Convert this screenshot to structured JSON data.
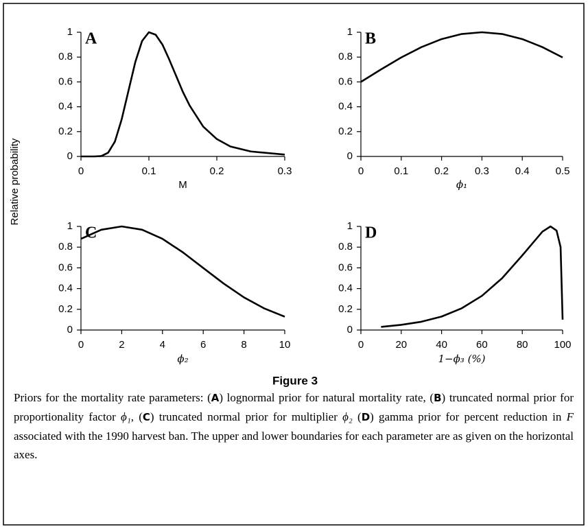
{
  "figure_label": "Figure 3",
  "y_label": "Relative probability",
  "caption": [
    "Priors for the mortality rate parameters: (",
    "A",
    ") lognormal prior for natural mortality rate, (",
    "B",
    ") truncated normal prior for proportionality factor ",
    "ϕ₁",
    ", (",
    "C",
    ") truncated normal prior for multiplier ",
    "ϕ₂",
    " (",
    "D",
    ") gamma prior for percent reduction in ",
    "F",
    " associated with the 1990 harvest ban. The upper and lower boundaries for each parameter are as given on the horizontal axes."
  ],
  "chart_data": [
    {
      "type": "line",
      "panel": "A",
      "x_label": "M",
      "color": "#000000",
      "x": [
        0,
        0.02,
        0.03,
        0.04,
        0.05,
        0.06,
        0.07,
        0.08,
        0.09,
        0.1,
        0.11,
        0.12,
        0.13,
        0.14,
        0.15,
        0.16,
        0.18,
        0.2,
        0.22,
        0.25,
        0.3
      ],
      "values": [
        0,
        0,
        0.003,
        0.03,
        0.12,
        0.3,
        0.53,
        0.76,
        0.93,
        1,
        0.98,
        0.9,
        0.78,
        0.65,
        0.52,
        0.41,
        0.24,
        0.14,
        0.08,
        0.04,
        0.015
      ],
      "xlim": [
        0,
        0.3
      ],
      "xticks": [
        0,
        0.1,
        0.2,
        0.3
      ],
      "ylim": [
        0,
        1
      ],
      "yticks": [
        0,
        0.2,
        0.4,
        0.6,
        0.8,
        1
      ]
    },
    {
      "type": "line",
      "panel": "B",
      "x_label": "ϕ₁",
      "color": "#000000",
      "x": [
        0,
        0.05,
        0.1,
        0.15,
        0.2,
        0.25,
        0.3,
        0.35,
        0.4,
        0.45,
        0.5
      ],
      "values": [
        0.6,
        0.701,
        0.797,
        0.88,
        0.945,
        0.986,
        1,
        0.986,
        0.945,
        0.88,
        0.797
      ],
      "xlim": [
        0,
        0.5
      ],
      "xticks": [
        0,
        0.1,
        0.2,
        0.3,
        0.4,
        0.5
      ],
      "ylim": [
        0,
        1
      ],
      "yticks": [
        0,
        0.2,
        0.4,
        0.6,
        0.8,
        1
      ]
    },
    {
      "type": "line",
      "panel": "C",
      "x_label": "ϕ₂",
      "color": "#000000",
      "x": [
        0,
        1,
        2,
        3,
        4,
        5,
        6,
        7,
        8,
        9,
        10
      ],
      "values": [
        0.88,
        0.968,
        1,
        0.968,
        0.88,
        0.75,
        0.599,
        0.449,
        0.315,
        0.208,
        0.129
      ],
      "xlim": [
        0,
        10
      ],
      "xticks": [
        0,
        2,
        4,
        6,
        8,
        10
      ],
      "ylim": [
        0,
        1
      ],
      "yticks": [
        0,
        0.2,
        0.4,
        0.6,
        0.8,
        1
      ]
    },
    {
      "type": "line",
      "panel": "D",
      "x_label": "1−ϕ₃ (%)",
      "color": "#000000",
      "x": [
        10,
        20,
        30,
        40,
        50,
        60,
        70,
        80,
        90,
        94,
        97,
        99,
        100
      ],
      "values": [
        0.03,
        0.05,
        0.08,
        0.13,
        0.21,
        0.33,
        0.5,
        0.72,
        0.95,
        1,
        0.96,
        0.8,
        0.1
      ],
      "xlim": [
        0,
        100
      ],
      "xticks": [
        0,
        20,
        40,
        60,
        80,
        100
      ],
      "ylim": [
        0,
        1
      ],
      "yticks": [
        0,
        0.2,
        0.4,
        0.6,
        0.8,
        1
      ]
    }
  ]
}
